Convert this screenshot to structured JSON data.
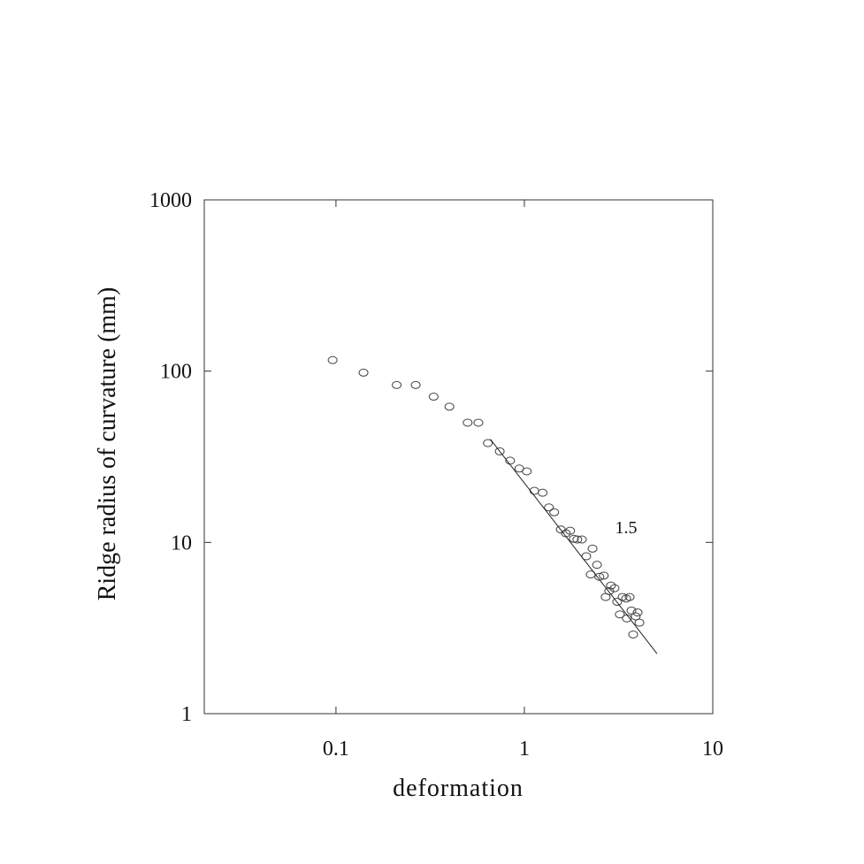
{
  "chart_data": {
    "type": "scatter",
    "x_label": "deformation",
    "y_label": "Ridge radius of curvature (mm)",
    "annotation": "1.5",
    "x_log": true,
    "y_log": true,
    "xlim": [
      0.02,
      10
    ],
    "ylim": [
      1,
      1000
    ],
    "xticks": [
      0.1,
      1,
      10
    ],
    "yticks": [
      1,
      10,
      100,
      1000
    ],
    "color": "#444444",
    "x": [
      0.096,
      0.14,
      0.21,
      0.265,
      0.33,
      0.4,
      0.5,
      0.57,
      0.64,
      0.74,
      0.84,
      0.94,
      1.03,
      1.13,
      1.25,
      1.35,
      1.44,
      1.56,
      1.66,
      1.75,
      1.83,
      1.91,
      2.02,
      2.13,
      2.25,
      2.3,
      2.43,
      2.5,
      2.64,
      2.7,
      2.82,
      2.88,
      3.01,
      3.11,
      3.21,
      3.32,
      3.47,
      3.5,
      3.62,
      3.7,
      3.78,
      3.9,
      3.99,
      4.08
    ],
    "values": [
      116,
      98,
      83,
      83,
      71,
      62,
      50,
      50,
      38,
      34,
      30,
      27,
      26,
      20,
      19.5,
      16,
      15,
      11.9,
      11.3,
      11.7,
      10.5,
      10.4,
      10.4,
      8.3,
      6.5,
      9.2,
      7.4,
      6.3,
      6.4,
      4.8,
      5.2,
      5.6,
      5.4,
      4.5,
      3.8,
      4.8,
      4.7,
      3.6,
      4.8,
      4.0,
      2.9,
      3.7,
      3.9,
      3.4
    ],
    "fit_line": {
      "x": [
        0.66,
        5.06
      ],
      "values": [
        40,
        2.24
      ]
    }
  }
}
